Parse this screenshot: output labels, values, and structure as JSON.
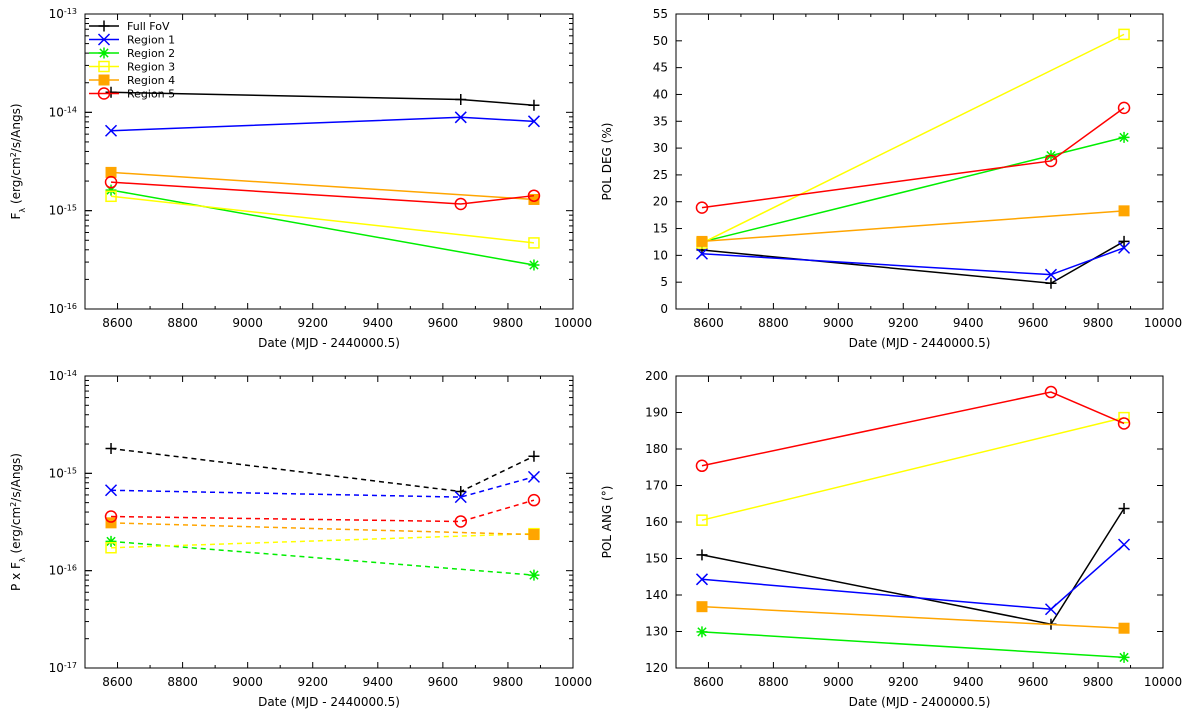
{
  "chart_data": [
    {
      "type": "line",
      "xlabel": "Date (MJD - 2440000.5)",
      "ylabel": "F_λ (erg/cm²/s/Angs)",
      "ylabel_main": "F",
      "ylabel_sub": "λ",
      "ylabel_tail": " (erg/cm",
      "ylabel_sup": "2",
      "ylabel_end": "/s/Angs)",
      "yscale": "log",
      "xlim": [
        8500,
        10000
      ],
      "ylim": [
        1e-16,
        1e-13
      ],
      "x_ticks": [
        "8600",
        "8800",
        "9000",
        "9200",
        "9400",
        "9600",
        "9800",
        "10000"
      ],
      "y_ticks": [
        {
          "base": "10",
          "exp": "-16"
        },
        {
          "base": "10",
          "exp": "-15"
        },
        {
          "base": "10",
          "exp": "-14"
        },
        {
          "base": "10",
          "exp": "-13"
        }
      ],
      "legend_position": "top-left",
      "legend": [
        "Full FoV",
        "Region 1",
        "Region 2",
        "Region 3",
        "Region 4",
        "Region 5"
      ],
      "series": [
        {
          "name": "Full FoV",
          "color": "#000000",
          "marker": "plus",
          "x": [
            8580,
            9655,
            9880
          ],
          "y": [
            1.6e-14,
            1.35e-14,
            1.18e-14
          ]
        },
        {
          "name": "Region 1",
          "color": "#0000ff",
          "marker": "cross",
          "x": [
            8580,
            9655,
            9880
          ],
          "y": [
            6.5e-15,
            8.9e-15,
            8.1e-15
          ]
        },
        {
          "name": "Region 2",
          "color": "#00ee00",
          "marker": "star",
          "x": [
            8580,
            9880
          ],
          "y": [
            1.62e-15,
            2.8e-16
          ]
        },
        {
          "name": "Region 3",
          "color": "#ffff00",
          "marker": "open-square",
          "x": [
            8580,
            9880
          ],
          "y": [
            1.4e-15,
            4.7e-16
          ]
        },
        {
          "name": "Region 4",
          "color": "#ffa500",
          "marker": "filled-square",
          "x": [
            8580,
            9880
          ],
          "y": [
            2.45e-15,
            1.3e-15
          ]
        },
        {
          "name": "Region 5",
          "color": "#ff0000",
          "marker": "open-circle",
          "x": [
            8580,
            9655,
            9880
          ],
          "y": [
            1.95e-15,
            1.17e-15,
            1.42e-15
          ]
        }
      ]
    },
    {
      "type": "line",
      "xlabel": "Date (MJD - 2440000.5)",
      "ylabel": "POL DEG (%)",
      "yscale": "linear",
      "xlim": [
        8500,
        10000
      ],
      "ylim": [
        0,
        55
      ],
      "x_ticks": [
        "8600",
        "8800",
        "9000",
        "9200",
        "9400",
        "9600",
        "9800",
        "10000"
      ],
      "y_ticks": [
        "0",
        "5",
        "10",
        "15",
        "20",
        "25",
        "30",
        "35",
        "40",
        "45",
        "50",
        "55"
      ],
      "series": [
        {
          "name": "Full FoV",
          "color": "#000000",
          "marker": "plus",
          "x": [
            8580,
            9655,
            9880
          ],
          "y": [
            11.0,
            4.8,
            12.6
          ]
        },
        {
          "name": "Region 1",
          "color": "#0000ff",
          "marker": "cross",
          "x": [
            8580,
            9655,
            9880
          ],
          "y": [
            10.3,
            6.4,
            11.4
          ]
        },
        {
          "name": "Region 2",
          "color": "#00ee00",
          "marker": "star",
          "x": [
            8580,
            9655,
            9880
          ],
          "y": [
            12.5,
            28.6,
            32.0
          ]
        },
        {
          "name": "Region 3",
          "color": "#ffff00",
          "marker": "open-square",
          "x": [
            8580,
            9880
          ],
          "y": [
            12.3,
            51.2
          ]
        },
        {
          "name": "Region 4",
          "color": "#ffa500",
          "marker": "filled-square",
          "x": [
            8580,
            9880
          ],
          "y": [
            12.6,
            18.3
          ]
        },
        {
          "name": "Region 5",
          "color": "#ff0000",
          "marker": "open-circle",
          "x": [
            8580,
            9655,
            9880
          ],
          "y": [
            18.9,
            27.6,
            37.5
          ]
        }
      ]
    },
    {
      "type": "line",
      "xlabel": "Date (MJD - 2440000.5)",
      "ylabel": "P x F_λ (erg/cm²/s/Angs)",
      "ylabel_main": "P x F",
      "ylabel_sub": "λ",
      "ylabel_tail": " (erg/cm",
      "ylabel_sup": "2",
      "ylabel_end": "/s/Angs)",
      "yscale": "log",
      "line_style": "dashed",
      "xlim": [
        8500,
        10000
      ],
      "ylim": [
        1e-17,
        1e-14
      ],
      "x_ticks": [
        "8600",
        "8800",
        "9000",
        "9200",
        "9400",
        "9600",
        "9800",
        "10000"
      ],
      "y_ticks": [
        {
          "base": "10",
          "exp": "-17"
        },
        {
          "base": "10",
          "exp": "-16"
        },
        {
          "base": "10",
          "exp": "-15"
        },
        {
          "base": "10",
          "exp": "-14"
        }
      ],
      "series": [
        {
          "name": "Full FoV",
          "color": "#000000",
          "marker": "plus",
          "x": [
            8580,
            9655,
            9880
          ],
          "y": [
            1.8e-15,
            6.5e-16,
            1.5e-15
          ]
        },
        {
          "name": "Region 1",
          "color": "#0000ff",
          "marker": "cross",
          "x": [
            8580,
            9655,
            9880
          ],
          "y": [
            6.7e-16,
            5.7e-16,
            9.2e-16
          ]
        },
        {
          "name": "Region 2",
          "color": "#00ee00",
          "marker": "star",
          "x": [
            8580,
            9880
          ],
          "y": [
            2e-16,
            9e-17
          ]
        },
        {
          "name": "Region 3",
          "color": "#ffff00",
          "marker": "open-square",
          "x": [
            8580,
            9880
          ],
          "y": [
            1.72e-16,
            2.4e-16
          ]
        },
        {
          "name": "Region 4",
          "color": "#ffa500",
          "marker": "filled-square",
          "x": [
            8580,
            9880
          ],
          "y": [
            3.1e-16,
            2.35e-16
          ]
        },
        {
          "name": "Region 5",
          "color": "#ff0000",
          "marker": "open-circle",
          "x": [
            8580,
            9655,
            9880
          ],
          "y": [
            3.6e-16,
            3.2e-16,
            5.3e-16
          ]
        }
      ]
    },
    {
      "type": "line",
      "xlabel": "Date (MJD - 2400000.5)",
      "ylabel": "POL ANG (°)",
      "yscale": "linear",
      "xlim": [
        8500,
        10000
      ],
      "ylim": [
        120,
        200
      ],
      "x_ticks": [
        "8600",
        "8800",
        "9000",
        "9200",
        "9400",
        "9600",
        "9800",
        "10000"
      ],
      "y_ticks": [
        "120",
        "130",
        "140",
        "150",
        "160",
        "170",
        "180",
        "190",
        "200"
      ],
      "series": [
        {
          "name": "Full FoV",
          "color": "#000000",
          "marker": "plus",
          "x": [
            8580,
            9655,
            9880
          ],
          "y": [
            151.0,
            132.0,
            163.7
          ]
        },
        {
          "name": "Region 1",
          "color": "#0000ff",
          "marker": "cross",
          "x": [
            8580,
            9655,
            9880
          ],
          "y": [
            144.3,
            136.1,
            153.8
          ]
        },
        {
          "name": "Region 2",
          "color": "#00ee00",
          "marker": "star",
          "x": [
            8580,
            9880
          ],
          "y": [
            129.9,
            122.9
          ]
        },
        {
          "name": "Region 3",
          "color": "#ffff00",
          "marker": "open-square",
          "x": [
            8580,
            9880
          ],
          "y": [
            160.5,
            188.6
          ]
        },
        {
          "name": "Region 4",
          "color": "#ffa500",
          "marker": "filled-square",
          "x": [
            8580,
            9880
          ],
          "y": [
            136.8,
            130.9
          ]
        },
        {
          "name": "Region 5",
          "color": "#ff0000",
          "marker": "open-circle",
          "x": [
            8580,
            9655,
            9880
          ],
          "y": [
            175.4,
            195.6,
            187.0
          ]
        }
      ]
    }
  ]
}
